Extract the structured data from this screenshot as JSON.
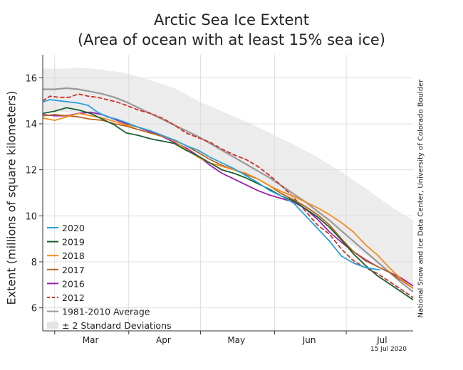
{
  "chart_data": {
    "type": "line",
    "title_lines": [
      "Arctic Sea Ice Extent",
      "(Area of ocean with at least 15% sea ice)"
    ],
    "ylabel": "Extent (millions of square kilometers)",
    "credit": "National Snow and Ice Data Center, University of Colorado Boulder",
    "date_stamp": "15 Jul 2020",
    "xlim": [
      55,
      210
    ],
    "ylim": [
      5,
      17
    ],
    "x_ticks": [
      {
        "label": "Mar",
        "x": 75
      },
      {
        "label": "Apr",
        "x": 105.5
      },
      {
        "label": "May",
        "x": 136
      },
      {
        "label": "Jun",
        "x": 166.5
      },
      {
        "label": "Jul",
        "x": 197
      }
    ],
    "x_gridlines": [
      60,
      91,
      121,
      152,
      182
    ],
    "y_ticks": [
      6,
      8,
      10,
      12,
      14,
      16
    ],
    "grid": true,
    "legend_position": "bottom-left",
    "band": {
      "name": "± 2 Standard Deviations",
      "color": "#ececec",
      "x": [
        55,
        65,
        70,
        80,
        90,
        100,
        110,
        120,
        130,
        140,
        150,
        160,
        170,
        180,
        190,
        200,
        210
      ],
      "upper": [
        16.4,
        16.4,
        16.45,
        16.35,
        16.2,
        15.9,
        15.55,
        15.0,
        14.55,
        14.1,
        13.6,
        13.1,
        12.55,
        11.9,
        11.2,
        10.45,
        9.8
      ],
      "lower": [
        14.55,
        14.5,
        14.45,
        14.25,
        14.0,
        13.7,
        13.35,
        12.75,
        12.3,
        11.85,
        11.3,
        10.6,
        9.9,
        9.05,
        8.3,
        7.55,
        6.95
      ]
    },
    "series": [
      {
        "name": "2020",
        "color": "#29a0de",
        "dash": "",
        "width": 1.8,
        "x": [
          55,
          58,
          62,
          66,
          70,
          74,
          78,
          82,
          86,
          90,
          95,
          100,
          105,
          110,
          115,
          120,
          125,
          130,
          135,
          140,
          145,
          150,
          155,
          160,
          165,
          170,
          175,
          180,
          185,
          190,
          193,
          196
        ],
        "y": [
          14.95,
          15.05,
          15.0,
          14.95,
          14.9,
          14.8,
          14.5,
          14.3,
          14.2,
          14.05,
          13.85,
          13.7,
          13.5,
          13.3,
          13.05,
          12.85,
          12.55,
          12.3,
          12.05,
          11.75,
          11.45,
          11.1,
          10.85,
          10.55,
          10.0,
          9.45,
          8.9,
          8.25,
          7.95,
          7.75,
          7.7,
          7.65
        ]
      },
      {
        "name": "2019",
        "color": "#196131",
        "dash": "",
        "width": 1.8,
        "x": [
          55,
          60,
          65,
          70,
          75,
          80,
          85,
          90,
          95,
          100,
          105,
          110,
          115,
          120,
          125,
          130,
          135,
          140,
          145,
          150,
          155,
          160,
          165,
          170,
          175,
          180,
          185,
          190,
          195,
          200,
          205,
          210
        ],
        "y": [
          14.45,
          14.55,
          14.7,
          14.6,
          14.45,
          14.2,
          13.95,
          13.6,
          13.5,
          13.35,
          13.25,
          13.15,
          12.85,
          12.6,
          12.3,
          12.0,
          11.85,
          11.65,
          11.4,
          11.15,
          10.85,
          10.65,
          10.3,
          9.95,
          9.5,
          8.95,
          8.35,
          7.85,
          7.4,
          7.05,
          6.7,
          6.35
        ]
      },
      {
        "name": "2018",
        "color": "#f68d1e",
        "dash": "",
        "width": 1.8,
        "x": [
          55,
          60,
          65,
          70,
          75,
          80,
          85,
          90,
          95,
          100,
          105,
          110,
          115,
          120,
          125,
          130,
          135,
          140,
          145,
          150,
          155,
          160,
          165,
          170,
          175,
          180,
          185,
          190,
          195,
          200,
          205,
          210
        ],
        "y": [
          14.25,
          14.15,
          14.3,
          14.45,
          14.35,
          14.25,
          14.1,
          13.95,
          13.85,
          13.7,
          13.5,
          13.25,
          12.9,
          12.55,
          12.3,
          12.15,
          12.0,
          11.85,
          11.6,
          11.3,
          11.05,
          10.85,
          10.6,
          10.35,
          10.05,
          9.7,
          9.3,
          8.75,
          8.3,
          7.75,
          7.25,
          6.85
        ]
      },
      {
        "name": "2017",
        "color": "#b5651d",
        "dash": "",
        "width": 1.8,
        "x": [
          55,
          60,
          65,
          70,
          75,
          80,
          85,
          90,
          95,
          100,
          105,
          110,
          115,
          120,
          125,
          130,
          135,
          140,
          145,
          150,
          155,
          160,
          165,
          170,
          175,
          180,
          185,
          190,
          195,
          200,
          205,
          210
        ],
        "y": [
          14.35,
          14.4,
          14.35,
          14.3,
          14.2,
          14.15,
          14.0,
          13.9,
          13.75,
          13.6,
          13.45,
          13.3,
          13.05,
          12.75,
          12.45,
          12.2,
          12.0,
          11.8,
          11.6,
          11.3,
          10.95,
          10.7,
          10.4,
          10.05,
          9.6,
          9.0,
          8.45,
          8.05,
          7.8,
          7.55,
          7.2,
          6.85
        ]
      },
      {
        "name": "2016",
        "color": "#9b1fa8",
        "dash": "",
        "width": 1.8,
        "x": [
          55,
          60,
          65,
          70,
          75,
          80,
          85,
          90,
          95,
          100,
          105,
          110,
          115,
          120,
          125,
          130,
          135,
          140,
          145,
          150,
          155,
          160,
          165,
          170,
          175,
          180,
          185,
          190,
          195,
          200,
          205,
          210
        ],
        "y": [
          14.4,
          14.35,
          14.35,
          14.45,
          14.5,
          14.4,
          14.2,
          14.0,
          13.85,
          13.65,
          13.45,
          13.2,
          12.95,
          12.6,
          12.2,
          11.85,
          11.6,
          11.35,
          11.1,
          10.9,
          10.75,
          10.6,
          10.3,
          9.85,
          9.3,
          8.85,
          8.45,
          8.1,
          7.8,
          7.55,
          7.3,
          6.95
        ]
      },
      {
        "name": "2012",
        "color": "#d0312d",
        "dash": "5,4",
        "width": 1.8,
        "x": [
          55,
          58,
          62,
          66,
          70,
          74,
          78,
          82,
          86,
          90,
          95,
          100,
          105,
          110,
          115,
          120,
          125,
          130,
          135,
          140,
          145,
          150,
          155,
          160,
          165,
          170,
          175,
          180,
          185,
          190,
          195,
          200,
          205,
          210
        ],
        "y": [
          15.0,
          15.2,
          15.15,
          15.15,
          15.3,
          15.2,
          15.15,
          15.05,
          14.95,
          14.8,
          14.6,
          14.45,
          14.25,
          13.95,
          13.6,
          13.4,
          13.2,
          12.9,
          12.65,
          12.45,
          12.15,
          11.75,
          11.3,
          10.8,
          10.2,
          9.6,
          9.2,
          8.55,
          8.05,
          7.75,
          7.5,
          7.15,
          6.8,
          6.45
        ]
      },
      {
        "name": "1981-2010 Average",
        "color": "#9a9a9a",
        "dash": "",
        "width": 2.2,
        "x": [
          55,
          60,
          65,
          70,
          75,
          80,
          85,
          90,
          95,
          100,
          105,
          110,
          115,
          120,
          125,
          130,
          135,
          140,
          145,
          150,
          155,
          160,
          165,
          170,
          175,
          180,
          185,
          190,
          195,
          200,
          205,
          210
        ],
        "y": [
          15.5,
          15.5,
          15.55,
          15.5,
          15.4,
          15.3,
          15.15,
          14.95,
          14.7,
          14.45,
          14.2,
          13.95,
          13.7,
          13.45,
          13.15,
          12.85,
          12.55,
          12.25,
          11.95,
          11.65,
          11.3,
          10.95,
          10.6,
          10.2,
          9.8,
          9.35,
          8.9,
          8.45,
          8.0,
          7.55,
          7.1,
          6.7
        ]
      }
    ]
  }
}
